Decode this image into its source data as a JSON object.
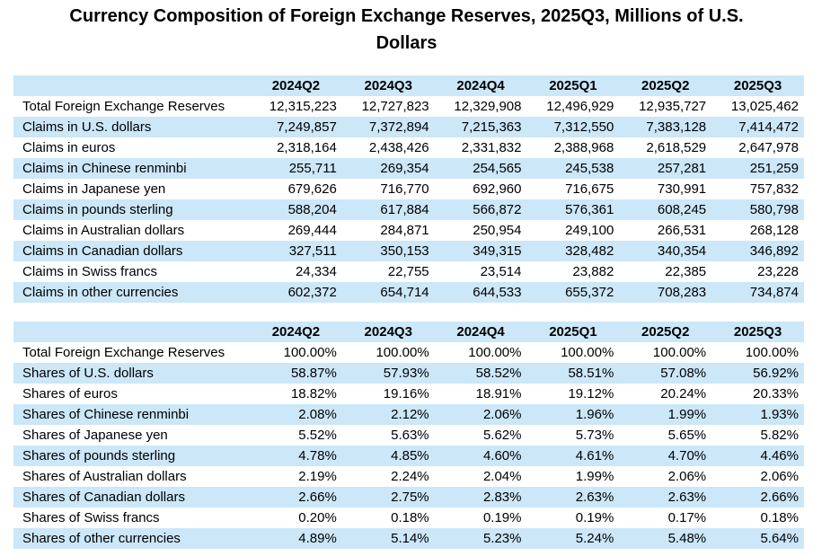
{
  "header": {
    "title": "Currency Composition of Foreign Exchange Reserves, 2025Q3, Millions of U.S. Dollars",
    "title_lines": [
      "Currency Composition of Foreign Exchange Reserves, 2025Q3, Millions of U.S.",
      "Dollars"
    ]
  },
  "colors": {
    "row_stripe": "#CBE7F8",
    "text": "#000000",
    "background": "#FFFFFF"
  },
  "chart_data": [
    {
      "type": "table",
      "name": "claims-in-millions-usd",
      "columns": [
        "2024Q2",
        "2024Q3",
        "2024Q4",
        "2025Q1",
        "2025Q2",
        "2025Q3"
      ],
      "rows": [
        {
          "label": "Total Foreign Exchange Reserves",
          "values": [
            "12,315,223",
            "12,727,823",
            "12,329,908",
            "12,496,929",
            "12,935,727",
            "13,025,462"
          ]
        },
        {
          "label": "Claims in U.S. dollars",
          "values": [
            "7,249,857",
            "7,372,894",
            "7,215,363",
            "7,312,550",
            "7,383,128",
            "7,414,472"
          ]
        },
        {
          "label": "Claims in euros",
          "values": [
            "2,318,164",
            "2,438,426",
            "2,331,832",
            "2,388,968",
            "2,618,529",
            "2,647,978"
          ]
        },
        {
          "label": "Claims in Chinese renminbi",
          "values": [
            "255,711",
            "269,354",
            "254,565",
            "245,538",
            "257,281",
            "251,259"
          ]
        },
        {
          "label": "Claims in Japanese yen",
          "values": [
            "679,626",
            "716,770",
            "692,960",
            "716,675",
            "730,991",
            "757,832"
          ]
        },
        {
          "label": "Claims in pounds sterling",
          "values": [
            "588,204",
            "617,884",
            "566,872",
            "576,361",
            "608,245",
            "580,798"
          ]
        },
        {
          "label": "Claims in Australian dollars",
          "values": [
            "269,444",
            "284,871",
            "250,954",
            "249,100",
            "266,531",
            "268,128"
          ]
        },
        {
          "label": "Claims in Canadian dollars",
          "values": [
            "327,511",
            "350,153",
            "349,315",
            "328,482",
            "340,354",
            "346,892"
          ]
        },
        {
          "label": "Claims in Swiss francs",
          "values": [
            "24,334",
            "22,755",
            "23,514",
            "23,882",
            "22,385",
            "23,228"
          ]
        },
        {
          "label": "Claims in other currencies",
          "values": [
            "602,372",
            "654,714",
            "644,533",
            "655,372",
            "708,283",
            "734,874"
          ]
        }
      ]
    },
    {
      "type": "table",
      "name": "shares-in-percent",
      "columns": [
        "2024Q2",
        "2024Q3",
        "2024Q4",
        "2025Q1",
        "2025Q2",
        "2025Q3"
      ],
      "rows": [
        {
          "label": "Total Foreign Exchange Reserves",
          "values": [
            "100.00%",
            "100.00%",
            "100.00%",
            "100.00%",
            "100.00%",
            "100.00%"
          ]
        },
        {
          "label": "Shares of U.S. dollars",
          "values": [
            "58.87%",
            "57.93%",
            "58.52%",
            "58.51%",
            "57.08%",
            "56.92%"
          ]
        },
        {
          "label": "Shares of euros",
          "values": [
            "18.82%",
            "19.16%",
            "18.91%",
            "19.12%",
            "20.24%",
            "20.33%"
          ]
        },
        {
          "label": "Shares of Chinese renminbi",
          "values": [
            "2.08%",
            "2.12%",
            "2.06%",
            "1.96%",
            "1.99%",
            "1.93%"
          ]
        },
        {
          "label": "Shares of Japanese yen",
          "values": [
            "5.52%",
            "5.63%",
            "5.62%",
            "5.73%",
            "5.65%",
            "5.82%"
          ]
        },
        {
          "label": "Shares of pounds sterling",
          "values": [
            "4.78%",
            "4.85%",
            "4.60%",
            "4.61%",
            "4.70%",
            "4.46%"
          ]
        },
        {
          "label": "Shares of Australian dollars",
          "values": [
            "2.19%",
            "2.24%",
            "2.04%",
            "1.99%",
            "2.06%",
            "2.06%"
          ]
        },
        {
          "label": "Shares of Canadian dollars",
          "values": [
            "2.66%",
            "2.75%",
            "2.83%",
            "2.63%",
            "2.63%",
            "2.66%"
          ]
        },
        {
          "label": "Shares of Swiss francs",
          "values": [
            "0.20%",
            "0.18%",
            "0.19%",
            "0.19%",
            "0.17%",
            "0.18%"
          ]
        },
        {
          "label": "Shares of other currencies",
          "values": [
            "4.89%",
            "5.14%",
            "5.23%",
            "5.24%",
            "5.48%",
            "5.64%"
          ]
        }
      ]
    }
  ]
}
